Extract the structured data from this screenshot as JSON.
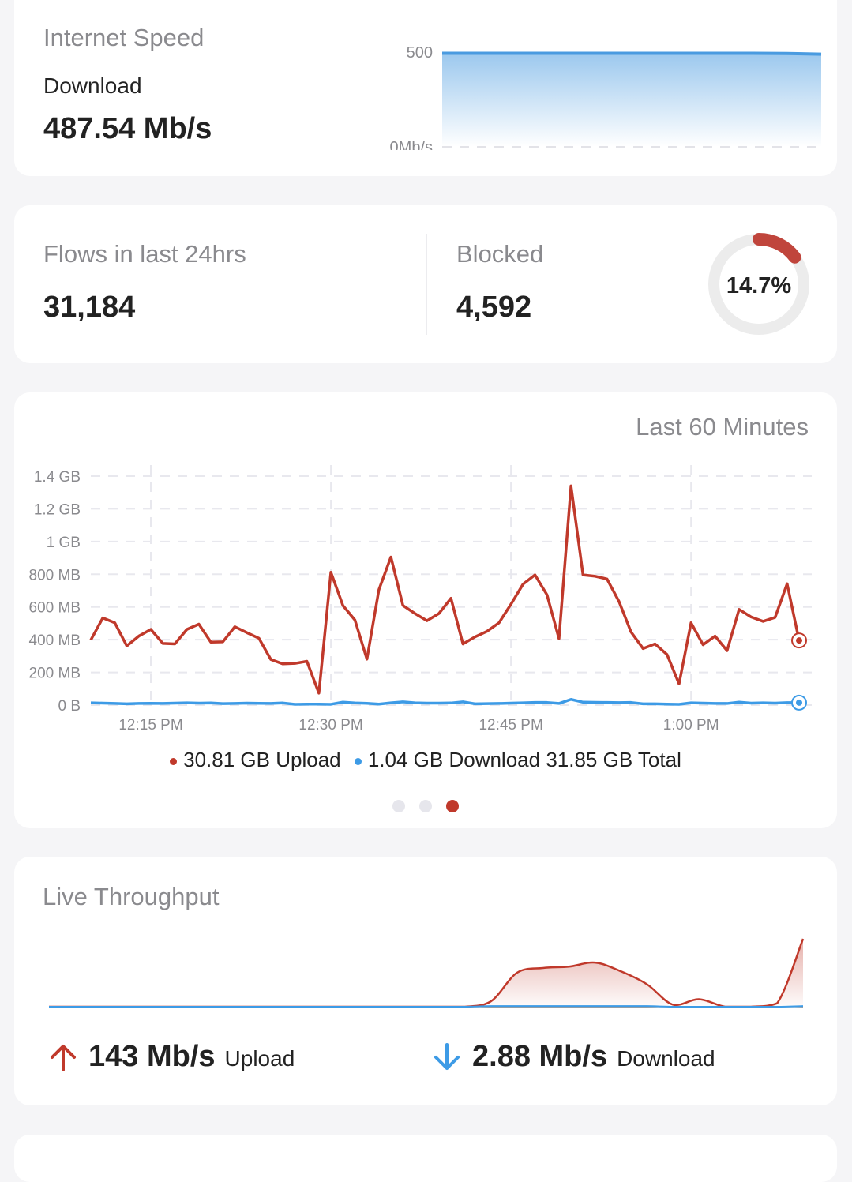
{
  "speed": {
    "title": "Internet Speed",
    "label": "Download",
    "value": "487.54 Mb/s",
    "y_top_label": "500",
    "y_bottom_label": "0Mb/s",
    "series": [
      498,
      498,
      498,
      498,
      498,
      498,
      498,
      498,
      498,
      498,
      497,
      493
    ],
    "ymax": 500,
    "color": "#4a9be0"
  },
  "flows": {
    "title": "Flows in last 24hrs",
    "value": "31,184",
    "blocked_title": "Blocked",
    "blocked_value": "4,592",
    "blocked_percent_label": "14.7%",
    "blocked_fraction": 0.147,
    "accent": "#c0453c"
  },
  "chart_data": {
    "type": "line",
    "title": "Last 60 Minutes",
    "y_ticks": [
      "0 B",
      "200 MB",
      "400 MB",
      "600 MB",
      "800 MB",
      "1 GB",
      "1.2 GB",
      "1.4 GB"
    ],
    "y_tick_values": [
      0,
      200,
      400,
      600,
      800,
      1000,
      1200,
      1400
    ],
    "ylim": [
      0,
      1400
    ],
    "x_ticks": [
      "12:15 PM",
      "12:30 PM",
      "12:45 PM",
      "1:00 PM"
    ],
    "x_tick_minutes": [
      5,
      20,
      35,
      50
    ],
    "xlim": [
      0,
      59
    ],
    "grid": true,
    "series": [
      {
        "name": "Upload",
        "color": "#c0392b",
        "values": [
          398,
          533,
          503,
          362,
          422,
          463,
          377,
          374,
          463,
          495,
          385,
          387,
          479,
          443,
          409,
          279,
          252,
          255,
          268,
          73,
          812,
          609,
          520,
          281,
          706,
          905,
          609,
          560,
          516,
          560,
          653,
          374,
          417,
          451,
          503,
          617,
          739,
          796,
          674,
          406,
          1340,
          796,
          788,
          771,
          633,
          447,
          346,
          374,
          309,
          130,
          503,
          369,
          422,
          333,
          585,
          539,
          512,
          536,
          742,
          395
        ]
      },
      {
        "name": "Download",
        "color": "#3d9be6",
        "values": [
          14,
          12,
          10,
          8,
          10,
          11,
          10,
          12,
          14,
          12,
          13,
          9,
          10,
          12,
          11,
          10,
          13,
          5,
          6,
          6,
          5,
          18,
          13,
          11,
          6,
          14,
          20,
          14,
          12,
          12,
          13,
          20,
          8,
          9,
          10,
          12,
          14,
          16,
          16,
          10,
          35,
          18,
          17,
          16,
          15,
          16,
          8,
          8,
          6,
          5,
          14,
          12,
          10,
          10,
          18,
          12,
          14,
          12,
          15,
          15
        ]
      }
    ],
    "legend": {
      "upload": "30.81 GB Upload",
      "download": "1.04 GB Download",
      "total": "31.85 GB Total"
    },
    "pager": {
      "count": 3,
      "active": 2
    }
  },
  "live": {
    "title": "Live Throughput",
    "upload_series": [
      0,
      0,
      0,
      0,
      0,
      0,
      0,
      0,
      0,
      0,
      0,
      0,
      0,
      0,
      0,
      0,
      0,
      8,
      50,
      57,
      59,
      65,
      52,
      33,
      3,
      11,
      0,
      0,
      5,
      100
    ],
    "download_series": [
      0,
      0,
      0,
      0,
      0,
      0,
      0,
      0,
      0,
      0,
      0,
      0,
      0,
      0,
      0,
      0,
      0,
      1,
      1,
      1,
      1,
      1,
      1,
      1,
      0,
      0,
      0,
      0,
      0,
      1
    ],
    "upload_value": "143 Mb/s",
    "upload_label": "Upload",
    "download_value": "2.88 Mb/s",
    "download_label": "Download",
    "upload_color": "#c0392b",
    "download_color": "#3d9be6"
  }
}
